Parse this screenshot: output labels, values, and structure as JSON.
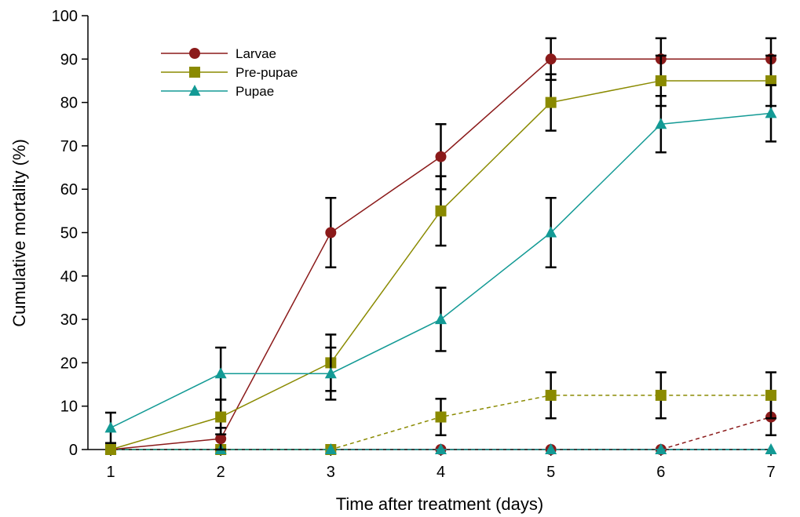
{
  "chart_data": {
    "type": "line",
    "xlabel": "Time after treatment (days)",
    "ylabel": "Cumulative mortality (%)",
    "xlim": [
      1,
      7
    ],
    "ylim": [
      0,
      100
    ],
    "x_ticks": [
      1,
      2,
      3,
      4,
      5,
      6,
      7
    ],
    "y_ticks": [
      0,
      10,
      20,
      30,
      40,
      50,
      60,
      70,
      80,
      90,
      100
    ],
    "grid": false,
    "legend_position": "top-left",
    "x": [
      1,
      2,
      3,
      4,
      5,
      6,
      7
    ],
    "series": [
      {
        "name": "Larvae",
        "group": "treated",
        "color": "#8b1a1a",
        "marker": "circle",
        "line_style": "solid",
        "values": [
          0,
          2.5,
          50,
          67.5,
          90,
          90,
          90
        ],
        "errors": [
          0,
          2.5,
          8,
          7.5,
          4.8,
          4.8,
          4.8
        ]
      },
      {
        "name": "Pre-pupae",
        "group": "treated",
        "color": "#8a8a00",
        "marker": "square",
        "line_style": "solid",
        "values": [
          0,
          7.5,
          20,
          55,
          80,
          85,
          85
        ],
        "errors": [
          0,
          4,
          6.5,
          8,
          6.5,
          5.8,
          5.8
        ]
      },
      {
        "name": "Pupae",
        "group": "treated",
        "color": "#139a95",
        "marker": "triangle",
        "line_style": "solid",
        "values": [
          5,
          17.5,
          17.5,
          30,
          50,
          75,
          77.5
        ],
        "errors": [
          3.5,
          6,
          6,
          7.3,
          8,
          6.5,
          6.5
        ]
      },
      {
        "group": "control",
        "color": "#8b1a1a",
        "marker": "circle",
        "line_style": "dashed",
        "values": [
          0,
          0,
          0,
          0,
          0,
          0,
          7.5
        ],
        "errors": [
          0,
          0,
          0,
          0,
          0,
          0,
          4.2
        ]
      },
      {
        "group": "control",
        "color": "#8a8a00",
        "marker": "square",
        "line_style": "dashed",
        "values": [
          0,
          0,
          0,
          7.5,
          12.5,
          12.5,
          12.5
        ],
        "errors": [
          0,
          0,
          0,
          4.2,
          5.3,
          5.3,
          5.3
        ]
      },
      {
        "group": "control",
        "color": "#139a95",
        "marker": "triangle",
        "line_style": "dashed",
        "values": [
          0,
          0,
          0,
          0,
          0,
          0,
          0
        ],
        "errors": [
          0,
          0,
          0,
          0,
          0,
          0,
          0
        ]
      }
    ]
  }
}
